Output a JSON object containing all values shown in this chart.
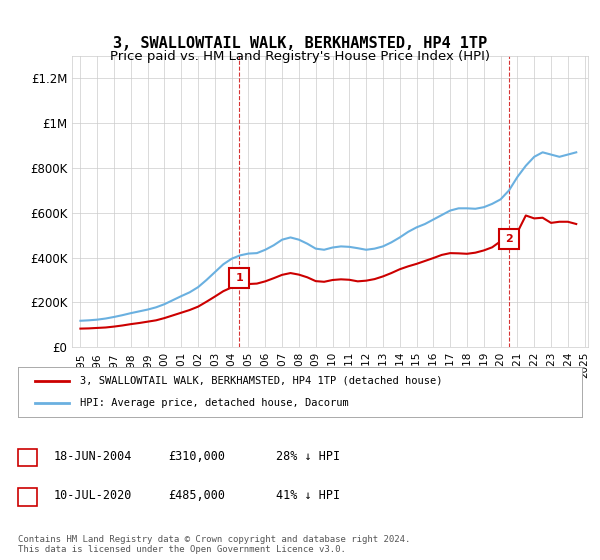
{
  "title": "3, SWALLOWTAIL WALK, BERKHAMSTED, HP4 1TP",
  "subtitle": "Price paid vs. HM Land Registry's House Price Index (HPI)",
  "title_fontsize": 11,
  "subtitle_fontsize": 9.5,
  "hpi_color": "#6ab0e0",
  "price_color": "#cc0000",
  "marker_color_1": "#cc0000",
  "marker_color_2": "#cc0000",
  "annotation_box_color": "#cc0000",
  "background_color": "#ffffff",
  "grid_color": "#cccccc",
  "ylim": [
    0,
    1300000
  ],
  "yticks": [
    0,
    200000,
    400000,
    600000,
    800000,
    1000000,
    1200000
  ],
  "ytick_labels": [
    "£0",
    "£200K",
    "£400K",
    "£600K",
    "£800K",
    "£1M",
    "£1.2M"
  ],
  "sale1_date": 2004.46,
  "sale1_price": 310000,
  "sale1_label": "1",
  "sale2_date": 2020.52,
  "sale2_price": 485000,
  "sale2_label": "2",
  "legend_line1": "3, SWALLOWTAIL WALK, BERKHAMSTED, HP4 1TP (detached house)",
  "legend_line2": "HPI: Average price, detached house, Dacorum",
  "table_row1": [
    "1",
    "18-JUN-2004",
    "£310,000",
    "28% ↓ HPI"
  ],
  "table_row2": [
    "2",
    "10-JUL-2020",
    "£485,000",
    "41% ↓ HPI"
  ],
  "footer": "Contains HM Land Registry data © Crown copyright and database right 2024.\nThis data is licensed under the Open Government Licence v3.0.",
  "hpi_years": [
    1995.0,
    1995.5,
    1996.0,
    1996.5,
    1997.0,
    1997.5,
    1998.0,
    1998.5,
    1999.0,
    1999.5,
    2000.0,
    2000.5,
    2001.0,
    2001.5,
    2002.0,
    2002.5,
    2003.0,
    2003.5,
    2004.0,
    2004.5,
    2005.0,
    2005.5,
    2006.0,
    2006.5,
    2007.0,
    2007.5,
    2008.0,
    2008.5,
    2009.0,
    2009.5,
    2010.0,
    2010.5,
    2011.0,
    2011.5,
    2012.0,
    2012.5,
    2013.0,
    2013.5,
    2014.0,
    2014.5,
    2015.0,
    2015.5,
    2016.0,
    2016.5,
    2017.0,
    2017.5,
    2018.0,
    2018.5,
    2019.0,
    2019.5,
    2020.0,
    2020.5,
    2021.0,
    2021.5,
    2022.0,
    2022.5,
    2023.0,
    2023.5,
    2024.0,
    2024.5
  ],
  "hpi_values": [
    118000,
    120000,
    123000,
    128000,
    135000,
    143000,
    152000,
    160000,
    168000,
    178000,
    192000,
    210000,
    228000,
    245000,
    268000,
    300000,
    335000,
    370000,
    395000,
    410000,
    418000,
    420000,
    435000,
    455000,
    480000,
    490000,
    480000,
    462000,
    440000,
    435000,
    445000,
    450000,
    448000,
    442000,
    435000,
    440000,
    450000,
    468000,
    490000,
    515000,
    535000,
    550000,
    570000,
    590000,
    610000,
    620000,
    620000,
    618000,
    625000,
    640000,
    660000,
    700000,
    760000,
    810000,
    850000,
    870000,
    860000,
    850000,
    860000,
    870000
  ],
  "price_years": [
    1995.0,
    1995.5,
    1996.0,
    1996.5,
    1997.0,
    1997.5,
    1998.0,
    1998.5,
    1999.0,
    1999.5,
    2000.0,
    2000.5,
    2001.0,
    2001.5,
    2002.0,
    2002.5,
    2003.0,
    2003.5,
    2004.0,
    2004.46,
    2004.5,
    2005.0,
    2005.5,
    2006.0,
    2006.5,
    2007.0,
    2007.5,
    2008.0,
    2008.5,
    2009.0,
    2009.5,
    2010.0,
    2010.5,
    2011.0,
    2011.5,
    2012.0,
    2012.5,
    2013.0,
    2013.5,
    2014.0,
    2014.5,
    2015.0,
    2015.5,
    2016.0,
    2016.5,
    2017.0,
    2017.5,
    2018.0,
    2018.5,
    2019.0,
    2019.5,
    2020.0,
    2020.52,
    2020.5,
    2021.0,
    2021.5,
    2022.0,
    2022.5,
    2023.0,
    2023.5,
    2024.0,
    2024.5
  ],
  "price_values": [
    83000,
    84000,
    86000,
    88000,
    92000,
    97000,
    103000,
    108000,
    114000,
    120000,
    130000,
    142000,
    154000,
    166000,
    181000,
    203000,
    226000,
    250000,
    267000,
    310000,
    277000,
    282000,
    284000,
    294000,
    308000,
    323000,
    331000,
    324000,
    312000,
    295000,
    292000,
    300000,
    303000,
    301000,
    294000,
    297000,
    304000,
    316000,
    331000,
    348000,
    361000,
    372000,
    385000,
    398000,
    412000,
    420000,
    419000,
    417000,
    422000,
    432000,
    446000,
    473000,
    485000,
    514000,
    513000,
    588000,
    575000,
    578000,
    555000,
    560000,
    560000,
    550000
  ]
}
